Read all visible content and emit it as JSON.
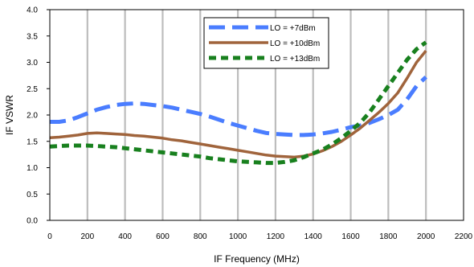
{
  "chart_data": {
    "type": "line",
    "title": "",
    "xlabel": "IF Frequency (MHz)",
    "ylabel": "IF VSWR",
    "xlim": [
      0,
      2200
    ],
    "ylim": [
      0,
      4.0
    ],
    "x_ticks": [
      0,
      200,
      400,
      600,
      800,
      1000,
      1200,
      1400,
      1600,
      1800,
      2000,
      2200
    ],
    "y_ticks": [
      0.0,
      0.5,
      1.0,
      1.5,
      2.0,
      2.5,
      3.0,
      3.5,
      4.0
    ],
    "x_tick_labels": [
      "0",
      "200",
      "400",
      "600",
      "800",
      "1000",
      "1200",
      "1400",
      "1600",
      "1800",
      "2000",
      "2200"
    ],
    "y_tick_labels": [
      "0.0",
      "0.5",
      "1.0",
      "1.5",
      "2.0",
      "2.5",
      "3.0",
      "3.5",
      "4.0"
    ],
    "grid": "vertical",
    "legend_position": "top-center",
    "series": [
      {
        "name": "LO = +7dBm",
        "color": "#4a7dff",
        "style": "long-dash",
        "x": [
          0,
          50,
          100,
          150,
          200,
          250,
          300,
          350,
          400,
          450,
          500,
          550,
          600,
          650,
          700,
          750,
          800,
          850,
          900,
          950,
          1000,
          1050,
          1100,
          1150,
          1200,
          1250,
          1300,
          1350,
          1400,
          1450,
          1500,
          1550,
          1600,
          1650,
          1700,
          1750,
          1800,
          1850,
          1900,
          1950,
          2000
        ],
        "y": [
          1.87,
          1.87,
          1.9,
          1.96,
          2.03,
          2.1,
          2.15,
          2.19,
          2.21,
          2.22,
          2.21,
          2.19,
          2.17,
          2.14,
          2.1,
          2.06,
          2.02,
          1.97,
          1.91,
          1.85,
          1.8,
          1.75,
          1.7,
          1.66,
          1.64,
          1.63,
          1.62,
          1.62,
          1.63,
          1.65,
          1.68,
          1.72,
          1.77,
          1.8,
          1.85,
          1.92,
          2.0,
          2.1,
          2.3,
          2.55,
          2.72
        ]
      },
      {
        "name": "LO = +10dBm",
        "color": "#a0643c",
        "style": "solid",
        "x": [
          0,
          50,
          100,
          150,
          200,
          250,
          300,
          350,
          400,
          450,
          500,
          550,
          600,
          650,
          700,
          750,
          800,
          850,
          900,
          950,
          1000,
          1050,
          1100,
          1150,
          1200,
          1250,
          1300,
          1350,
          1400,
          1450,
          1500,
          1550,
          1600,
          1650,
          1700,
          1750,
          1800,
          1850,
          1900,
          1950,
          2000
        ],
        "y": [
          1.57,
          1.58,
          1.6,
          1.62,
          1.65,
          1.66,
          1.65,
          1.64,
          1.63,
          1.61,
          1.6,
          1.58,
          1.56,
          1.53,
          1.51,
          1.48,
          1.45,
          1.42,
          1.39,
          1.36,
          1.33,
          1.3,
          1.27,
          1.24,
          1.22,
          1.21,
          1.2,
          1.22,
          1.26,
          1.32,
          1.4,
          1.5,
          1.62,
          1.75,
          1.9,
          2.05,
          2.22,
          2.42,
          2.7,
          3.0,
          3.22
        ]
      },
      {
        "name": "LO = +13dBm",
        "color": "#18801e",
        "style": "dash",
        "x": [
          0,
          50,
          100,
          150,
          200,
          250,
          300,
          350,
          400,
          450,
          500,
          550,
          600,
          650,
          700,
          750,
          800,
          850,
          900,
          950,
          1000,
          1050,
          1100,
          1150,
          1200,
          1250,
          1300,
          1350,
          1400,
          1450,
          1500,
          1550,
          1600,
          1650,
          1700,
          1750,
          1800,
          1850,
          1900,
          1950,
          2000
        ],
        "y": [
          1.4,
          1.41,
          1.42,
          1.42,
          1.42,
          1.41,
          1.4,
          1.39,
          1.37,
          1.35,
          1.33,
          1.31,
          1.29,
          1.27,
          1.25,
          1.23,
          1.21,
          1.18,
          1.16,
          1.14,
          1.12,
          1.11,
          1.1,
          1.09,
          1.09,
          1.11,
          1.14,
          1.2,
          1.27,
          1.34,
          1.44,
          1.56,
          1.7,
          1.85,
          2.05,
          2.3,
          2.55,
          2.8,
          3.05,
          3.25,
          3.38
        ]
      }
    ]
  }
}
